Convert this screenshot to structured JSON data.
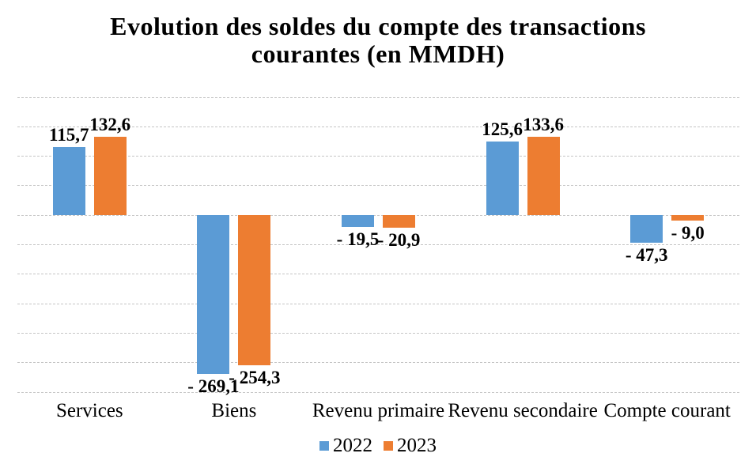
{
  "title": {
    "line1": "Evolution des soldes du compte des transactions",
    "line2": "courantes (en MMDH)"
  },
  "chart_data": {
    "type": "bar",
    "title": "Evolution des soldes du compte des transactions courantes (en MMDH)",
    "categories": [
      "Services",
      "Biens",
      "Revenu primaire",
      "Revenu secondaire",
      "Compte courant"
    ],
    "series": [
      {
        "name": "2022",
        "color": "#5B9BD5",
        "values": [
          115.7,
          -269.1,
          -19.5,
          125.6,
          -47.3
        ],
        "labels": [
          "115,7",
          "- 269,1",
          "- 19,5",
          "125,6",
          "- 47,3"
        ]
      },
      {
        "name": "2023",
        "color": "#ED7D31",
        "values": [
          132.6,
          -254.3,
          -20.9,
          133.6,
          -9.0
        ],
        "labels": [
          "132,6",
          "- 254,3",
          "- 20,9",
          "133,6",
          "- 9,0"
        ]
      }
    ],
    "xlabel": "",
    "ylabel": "",
    "ylim": [
      -300,
      200
    ],
    "gridline_step": 50,
    "grid": true,
    "grid_style": "dashed",
    "grid_color": "#c5c5c5",
    "legend_position": "bottom",
    "data_labels": true,
    "decimal_separator": ","
  },
  "colors": {
    "background": "#ffffff",
    "text": "#000000"
  }
}
